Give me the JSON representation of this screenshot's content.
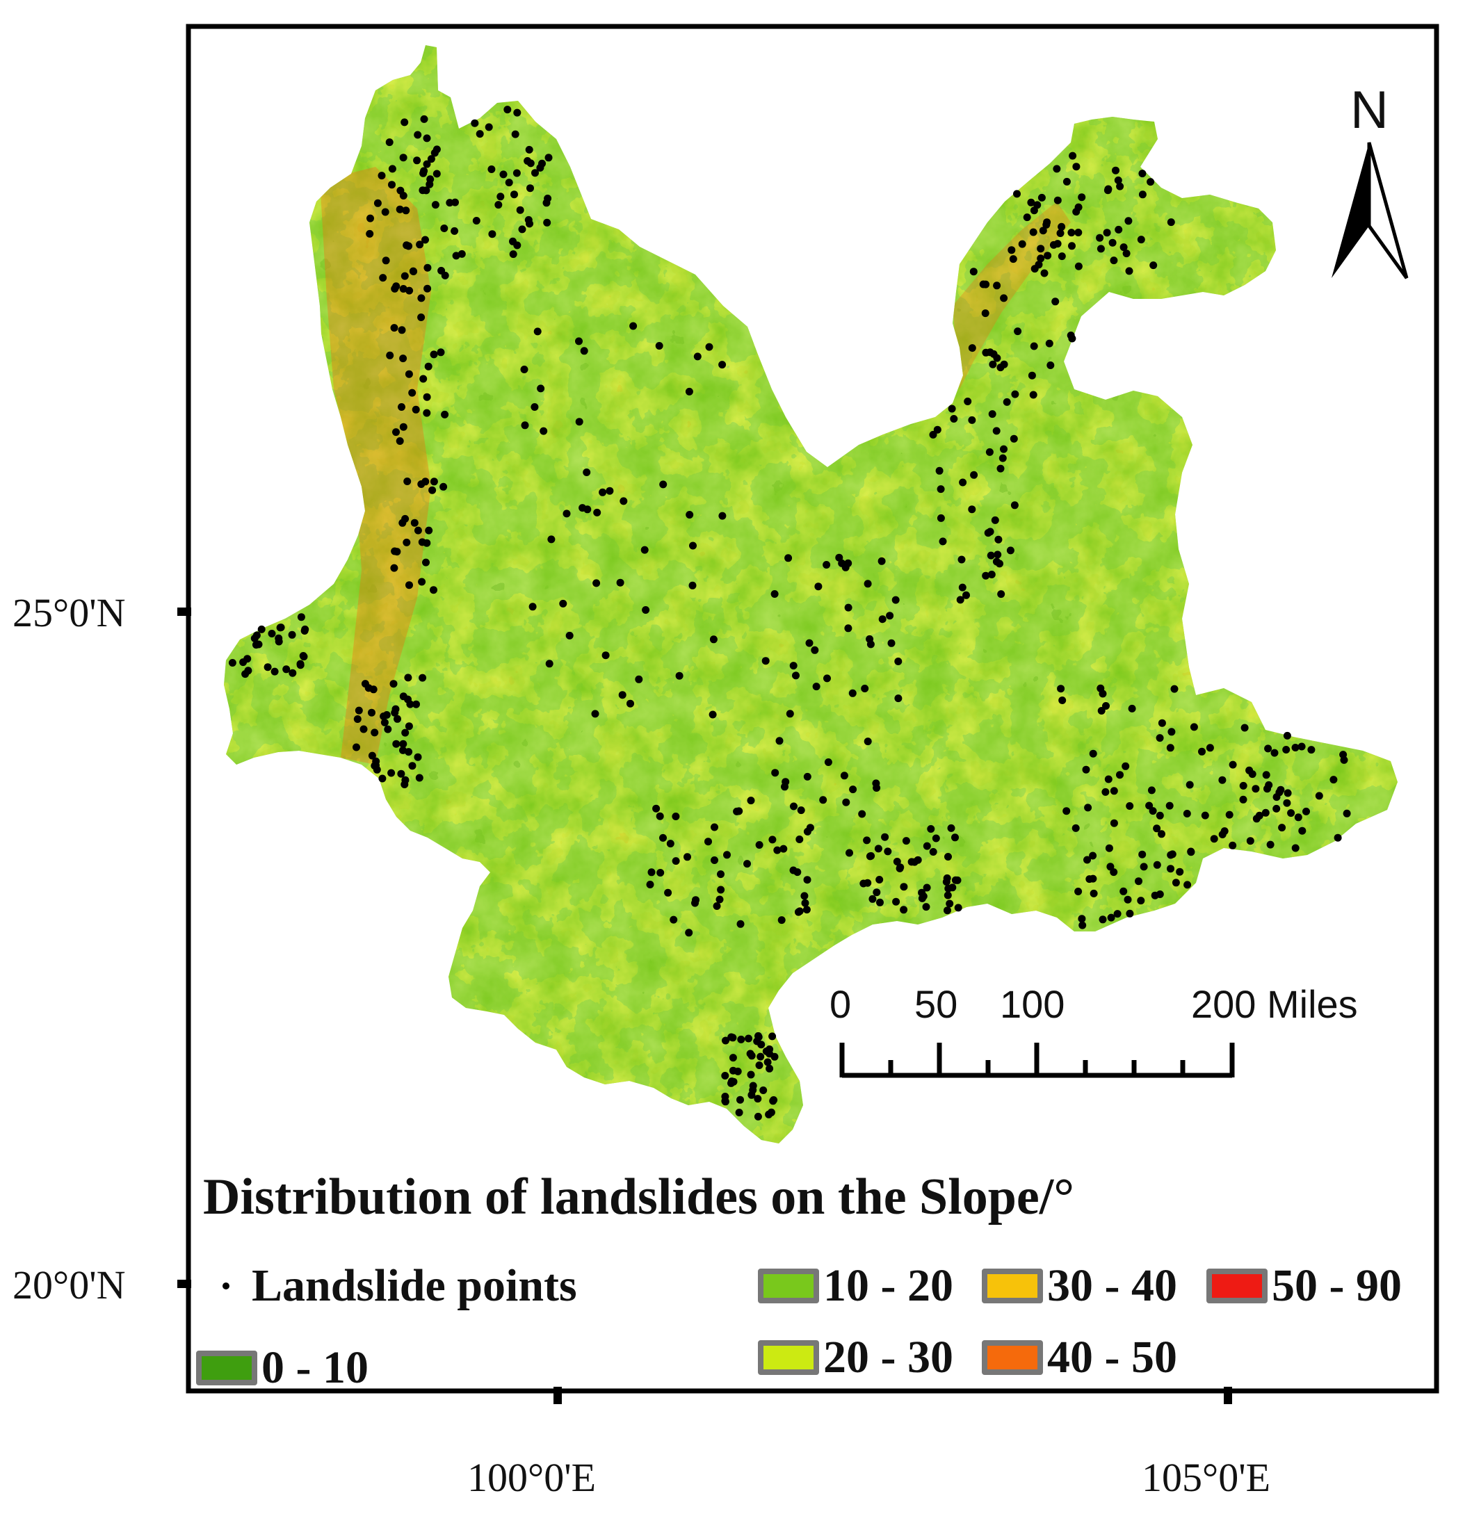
{
  "map": {
    "north_arrow_label": "N",
    "axes": {
      "latitude_ticks": [
        {
          "label": "25°0'N"
        },
        {
          "label": "20°0'N"
        }
      ],
      "longitude_ticks": [
        {
          "label": "100°0'E"
        },
        {
          "label": "105°0'E"
        }
      ]
    },
    "scale_bar": {
      "labels": [
        "0",
        "50",
        "100",
        "200 Miles"
      ]
    },
    "legend": {
      "title": "Distribution of landslides on the Slope/°",
      "points_label": "Landslide points",
      "classes": [
        {
          "label": "0 - 10",
          "color": "#3f9e0f"
        },
        {
          "label": "10 - 20",
          "color": "#79c81c"
        },
        {
          "label": "20 - 30",
          "color": "#ccea12"
        },
        {
          "label": "30 - 40",
          "color": "#f7c20a"
        },
        {
          "label": "40 - 50",
          "color": "#f56a0c"
        },
        {
          "label": "50 - 90",
          "color": "#ee1b14"
        }
      ]
    },
    "colors": {
      "frame": "#000000",
      "point": "#000000"
    }
  }
}
